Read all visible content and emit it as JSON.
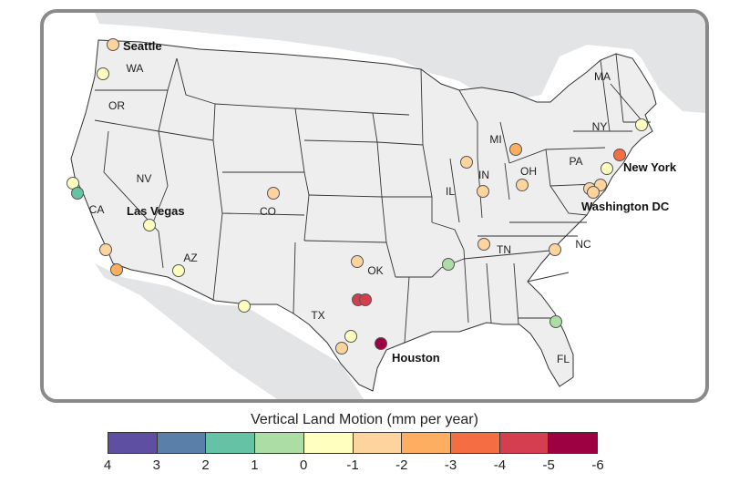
{
  "legend": {
    "title": "Vertical Land Motion (mm per year)",
    "ticks": [
      "4",
      "3",
      "2",
      "1",
      "0",
      "-1",
      "-2",
      "-3",
      "-4",
      "-5",
      "-6"
    ],
    "colors": [
      "#5e4fa2",
      "#5a7fa8",
      "#66c2a5",
      "#abdda4",
      "#ffffbf",
      "#fdd49e",
      "#fdae61",
      "#f46d43",
      "#d53e4f",
      "#9e0142"
    ]
  },
  "map": {
    "water_color": "#ffffff",
    "land_color": "#eeeeee",
    "neighbor_land_color": "#e2e4e6",
    "state_labels": [
      "WA",
      "OR",
      "CA",
      "NV",
      "AZ",
      "CO",
      "TX",
      "OK",
      "IL",
      "IN",
      "OH",
      "MI",
      "PA",
      "NY",
      "MA",
      "TN",
      "NC",
      "FL"
    ],
    "city_labels": [
      "Seattle",
      "Las Vegas",
      "New York",
      "Washington DC",
      "Houston"
    ]
  },
  "stations_color_index": [
    5,
    4,
    4,
    2,
    4,
    5,
    6,
    4,
    4,
    5,
    5,
    8,
    8,
    4,
    5,
    9,
    5,
    3,
    5,
    6,
    5,
    5,
    5,
    5,
    5,
    3,
    4,
    7,
    4,
    5,
    4,
    3
  ]
}
